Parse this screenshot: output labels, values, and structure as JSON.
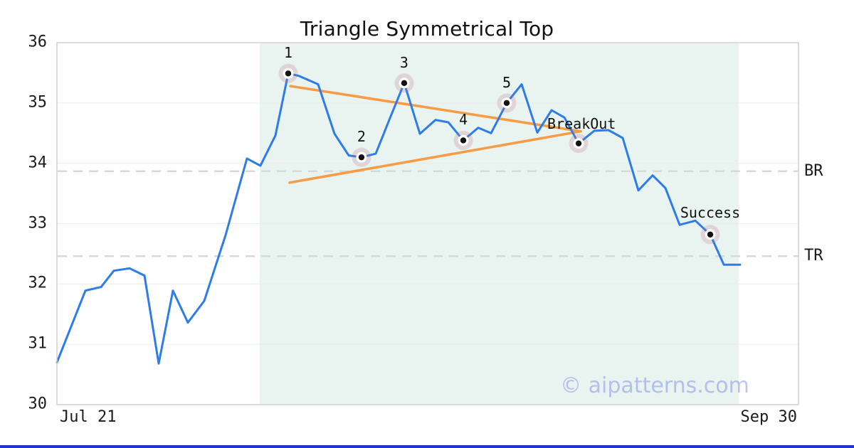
{
  "page": {
    "watermark": "© aipatterns.com"
  },
  "chart_data": {
    "type": "line",
    "title": "Triangle Symmetrical Top",
    "x_axis": {
      "start_tick": "Jul 21",
      "end_tick": "Sep 30"
    },
    "y_axis": {
      "min": 30,
      "max": 36,
      "ticks": [
        30,
        31,
        32,
        33,
        34,
        35,
        36
      ]
    },
    "grid": true,
    "legend": false,
    "colors": {
      "line": "#2d7ce8",
      "trendline": "#f89b45",
      "pattern_zone": "#e9f3ef",
      "grid": "#ededed",
      "axis_border": "#cfcfcf",
      "level_dash": "#d8d8d8",
      "marker_dot": "#111111",
      "marker_ring": "#ffffff",
      "marker_halo": "rgba(188,108,130,0.22)",
      "watermark": "rgba(125,140,235,0.5)",
      "footer_bar": "#1f35cf",
      "text": "#1a1a1a"
    },
    "series": [
      {
        "name": "price",
        "points": [
          [
            0.0,
            30.7
          ],
          [
            0.0384,
            31.89
          ],
          [
            0.0595,
            31.95
          ],
          [
            0.0768,
            32.22
          ],
          [
            0.0979,
            32.26
          ],
          [
            0.118,
            32.14
          ],
          [
            0.1372,
            30.68
          ],
          [
            0.1564,
            31.89
          ],
          [
            0.1766,
            31.36
          ],
          [
            0.1987,
            31.72
          ],
          [
            0.2274,
            32.81
          ],
          [
            0.2562,
            34.08
          ],
          [
            0.2744,
            33.96
          ],
          [
            0.2946,
            34.46
          ],
          [
            0.3119,
            35.49
          ],
          [
            0.3263,
            35.45
          ],
          [
            0.3522,
            35.31
          ],
          [
            0.3743,
            34.49
          ],
          [
            0.3935,
            34.13
          ],
          [
            0.4107,
            34.1
          ],
          [
            0.4299,
            34.16
          ],
          [
            0.4491,
            34.75
          ],
          [
            0.4683,
            35.33
          ],
          [
            0.4894,
            34.49
          ],
          [
            0.5106,
            34.72
          ],
          [
            0.5278,
            34.68
          ],
          [
            0.548,
            34.38
          ],
          [
            0.5681,
            34.59
          ],
          [
            0.5854,
            34.5
          ],
          [
            0.6065,
            35.0
          ],
          [
            0.6267,
            35.31
          ],
          [
            0.6478,
            34.51
          ],
          [
            0.667,
            34.88
          ],
          [
            0.6843,
            34.76
          ],
          [
            0.7035,
            34.33
          ],
          [
            0.7246,
            34.54
          ],
          [
            0.7438,
            34.55
          ],
          [
            0.763,
            34.42
          ],
          [
            0.7841,
            33.55
          ],
          [
            0.8033,
            33.8
          ],
          [
            0.8205,
            33.59
          ],
          [
            0.8397,
            32.98
          ],
          [
            0.8609,
            33.05
          ],
          [
            0.881,
            32.82
          ],
          [
            0.8993,
            32.32
          ],
          [
            0.9213,
            32.32
          ]
        ]
      }
    ],
    "pattern_zone": {
      "x_start": 0.2735,
      "x_end": 0.9194
    },
    "trendlines": [
      {
        "name": "upper",
        "x1": 0.3148,
        "v1": 35.28,
        "x2": 0.7063,
        "v2": 34.53
      },
      {
        "name": "lower",
        "x1": 0.3138,
        "v1": 33.68,
        "x2": 0.7063,
        "v2": 34.53
      }
    ],
    "levels": [
      {
        "label": "BR",
        "value": 33.87
      },
      {
        "label": "TR",
        "value": 32.46
      }
    ],
    "annotations": [
      {
        "label": "1",
        "x": 0.3119,
        "v": 35.49,
        "anchor": "mid",
        "dy": -25
      },
      {
        "label": "2",
        "x": 0.4107,
        "v": 34.1,
        "anchor": "mid",
        "dy": -25
      },
      {
        "label": "3",
        "x": 0.4683,
        "v": 35.33,
        "anchor": "mid",
        "dy": -25
      },
      {
        "label": "4",
        "x": 0.548,
        "v": 34.38,
        "anchor": "mid",
        "dy": -25
      },
      {
        "label": "5",
        "x": 0.6065,
        "v": 35.0,
        "anchor": "mid",
        "dy": -25
      },
      {
        "label": "BreakOut",
        "x": 0.7035,
        "v": 34.33,
        "anchor": "start",
        "dx": -44,
        "dy": -24
      },
      {
        "label": "Success",
        "x": 0.881,
        "v": 32.82,
        "anchor": "mid",
        "dy": -27
      }
    ]
  }
}
